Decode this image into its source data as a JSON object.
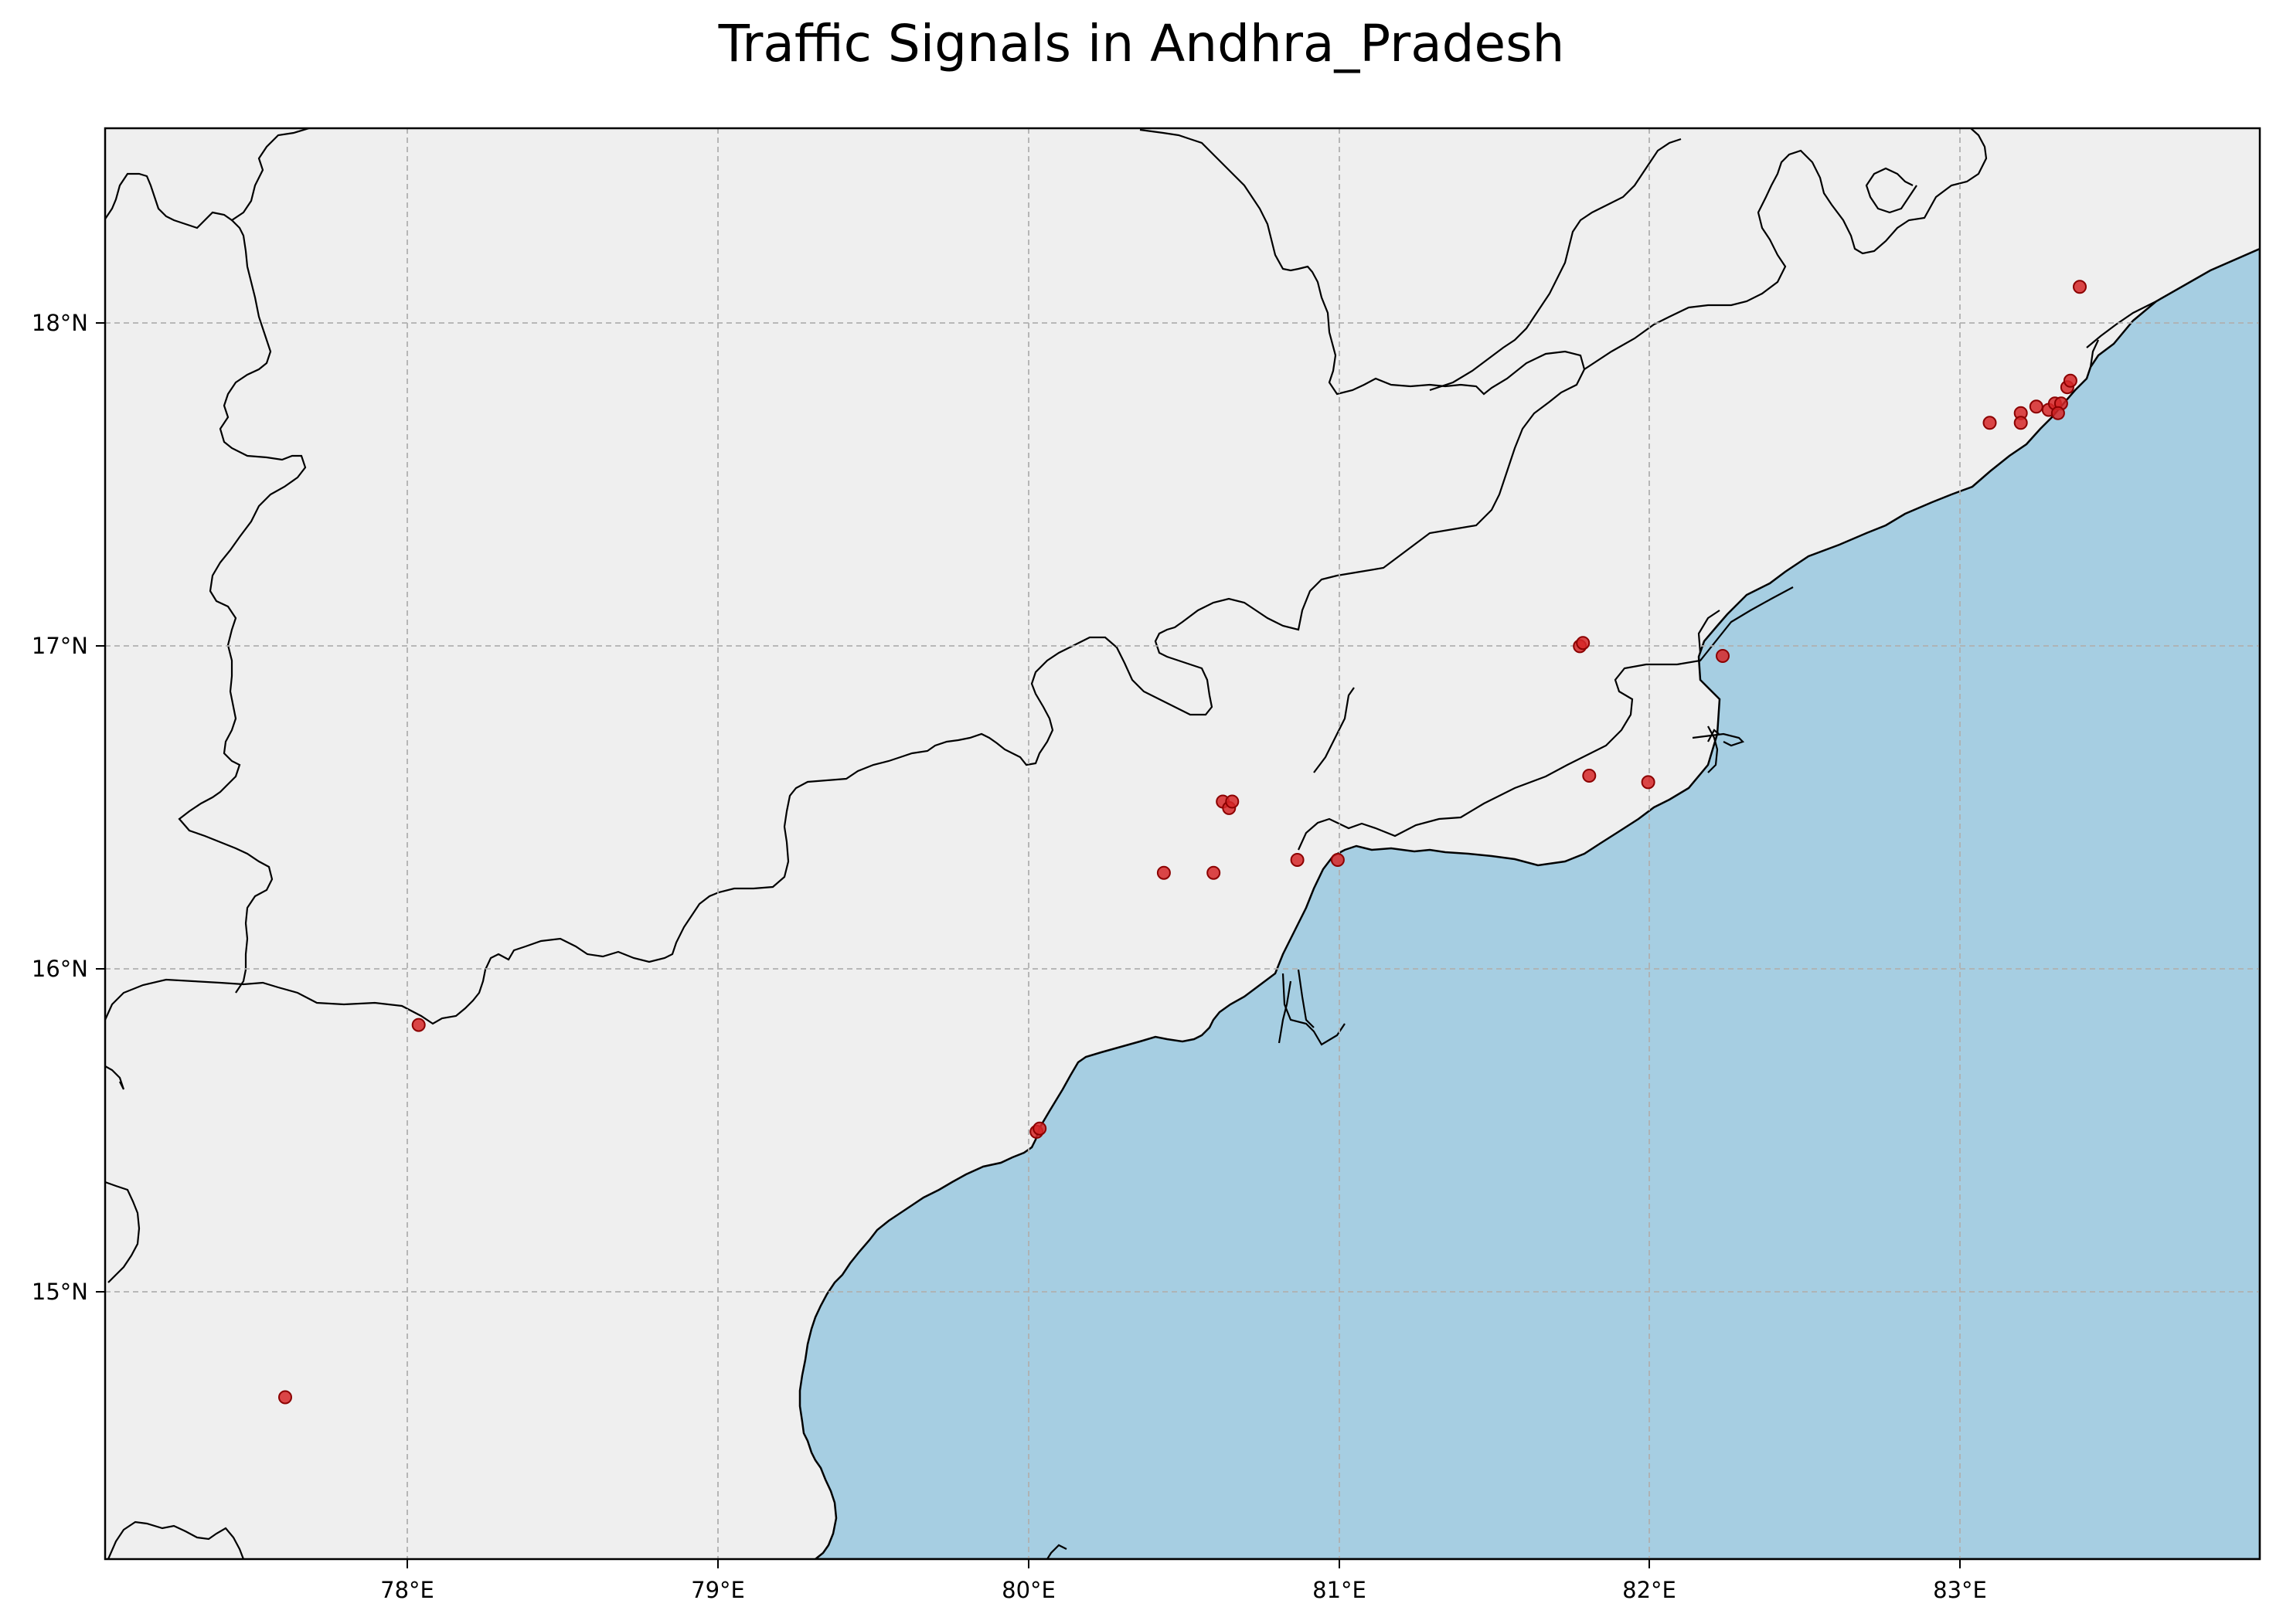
{
  "title": "Traffic Signals in Andhra_Pradesh",
  "colors": {
    "land": "#efefef",
    "ocean": "#a6cee2",
    "boundary": "#000000",
    "grid": "#b0b0b0",
    "marker_fill": "#d62728",
    "marker_edge": "#8b0000"
  },
  "chart_data": {
    "type": "scatter",
    "title": "Traffic Signals in Andhra_Pradesh",
    "xlim": [
      77.03,
      83.97
    ],
    "ylim": [
      14.18,
      18.6
    ],
    "grid": true,
    "x_ticks": [
      78,
      79,
      80,
      81,
      82,
      83
    ],
    "x_tick_labels": [
      "78°E",
      "79°E",
      "80°E",
      "81°E",
      "82°E",
      "83°E"
    ],
    "y_ticks": [
      15,
      16,
      17,
      18
    ],
    "y_tick_labels": [
      "15°N",
      "16°N",
      "17°N",
      "18°N"
    ],
    "points": [
      {
        "lon": 77.61,
        "lat": 14.68
      },
      {
        "lon": 78.04,
        "lat": 15.83
      },
      {
        "lon": 80.03,
        "lat": 15.5
      },
      {
        "lon": 80.04,
        "lat": 15.51
      },
      {
        "lon": 80.44,
        "lat": 16.3
      },
      {
        "lon": 80.6,
        "lat": 16.3
      },
      {
        "lon": 80.63,
        "lat": 16.52
      },
      {
        "lon": 80.65,
        "lat": 16.5
      },
      {
        "lon": 80.66,
        "lat": 16.52
      },
      {
        "lon": 80.87,
        "lat": 16.34
      },
      {
        "lon": 81.0,
        "lat": 16.34
      },
      {
        "lon": 81.78,
        "lat": 17.0
      },
      {
        "lon": 81.79,
        "lat": 17.01
      },
      {
        "lon": 81.81,
        "lat": 16.6
      },
      {
        "lon": 82.0,
        "lat": 16.58
      },
      {
        "lon": 82.24,
        "lat": 16.97
      },
      {
        "lon": 83.1,
        "lat": 17.69
      },
      {
        "lon": 83.2,
        "lat": 17.72
      },
      {
        "lon": 83.2,
        "lat": 17.69
      },
      {
        "lon": 83.25,
        "lat": 17.74
      },
      {
        "lon": 83.29,
        "lat": 17.73
      },
      {
        "lon": 83.31,
        "lat": 17.75
      },
      {
        "lon": 83.33,
        "lat": 17.75
      },
      {
        "lon": 83.32,
        "lat": 17.72
      },
      {
        "lon": 83.35,
        "lat": 17.8
      },
      {
        "lon": 83.36,
        "lat": 17.82
      },
      {
        "lon": 83.39,
        "lat": 18.11
      }
    ]
  }
}
